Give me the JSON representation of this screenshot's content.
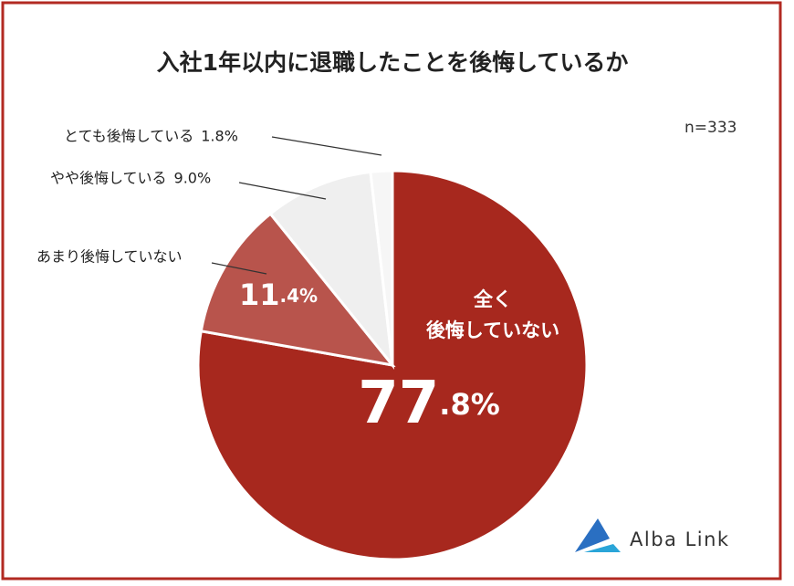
{
  "chart_data": {
    "type": "pie",
    "title": "入社1年以内に退職したことを後悔しているか",
    "note": "n=333",
    "brand": "Alba Link",
    "categories": [
      "全く\n後悔していない",
      "あまり後悔していない",
      "やや後悔している",
      "とても後悔している"
    ],
    "values": [
      77.8,
      11.4,
      9.0,
      1.8
    ],
    "value_labels": [
      "77.8%",
      "11.4%",
      "9.0%",
      "1.8%"
    ],
    "colors": [
      "#a7281e",
      "#b8544c",
      "#efefef",
      "#f6f6f6"
    ]
  }
}
